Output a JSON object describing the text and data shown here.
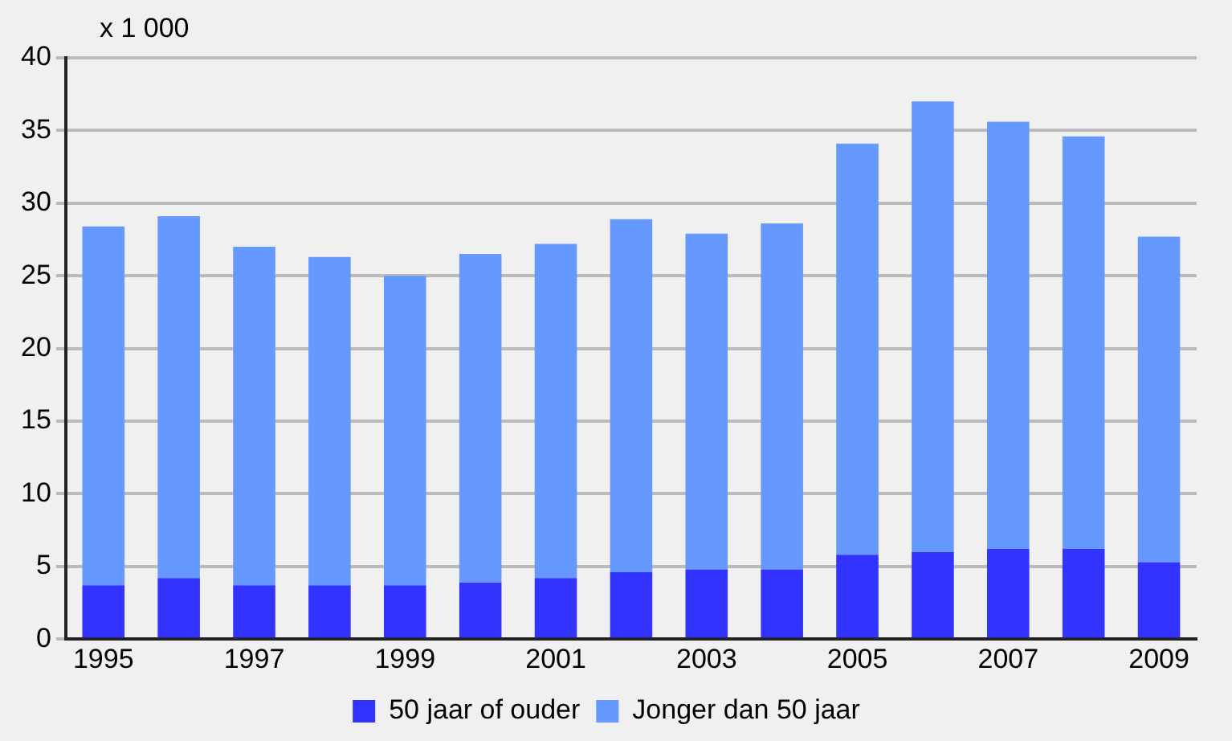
{
  "chart_data": {
    "type": "bar",
    "stacked": true,
    "ylabel": "x 1 000",
    "categories": [
      "1995",
      null,
      "1997",
      null,
      "1999",
      null,
      "2001",
      null,
      "2003",
      null,
      "2005",
      null,
      "2007",
      null,
      "2009"
    ],
    "series": [
      {
        "name": "50 jaar of ouder",
        "color": "#3333ff",
        "values": [
          3.7,
          4.2,
          3.7,
          3.7,
          3.7,
          3.9,
          4.2,
          4.6,
          4.8,
          4.8,
          5.8,
          6.0,
          6.2,
          6.2,
          5.3
        ]
      },
      {
        "name": "Jonger dan 50 jaar",
        "color": "#6699ff",
        "values": [
          24.7,
          24.9,
          23.3,
          22.6,
          21.3,
          22.6,
          23.0,
          24.3,
          23.1,
          23.8,
          28.3,
          31.0,
          29.4,
          28.4,
          22.4
        ]
      }
    ],
    "ylim": [
      0,
      40
    ],
    "yticks": [
      0,
      5,
      10,
      15,
      20,
      25,
      30,
      35,
      40
    ],
    "grid": "y",
    "legend": "bottom"
  }
}
